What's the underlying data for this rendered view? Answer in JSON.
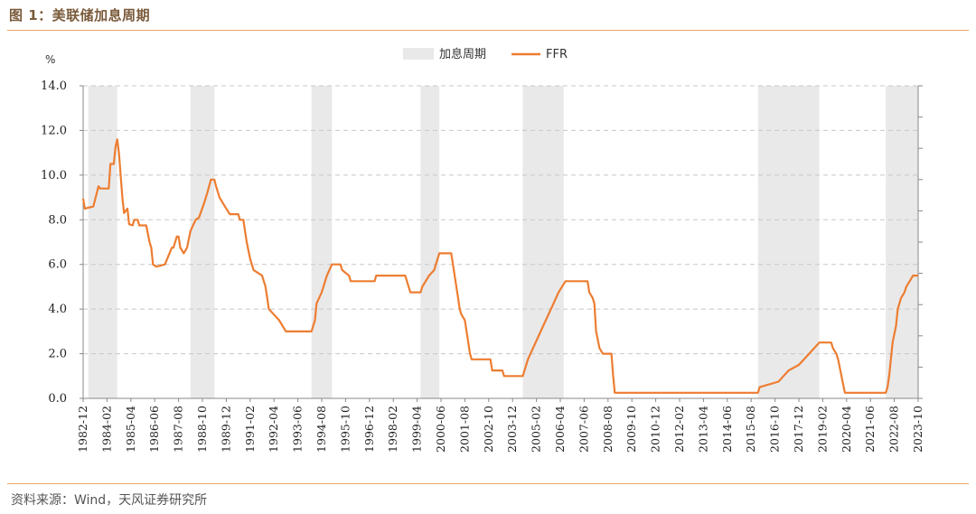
{
  "header": {
    "title": "图 1：美联储加息周期"
  },
  "footer": {
    "source": "资料来源：Wind，天风证券研究所"
  },
  "colors": {
    "accent": "#e8a466",
    "line": "#ed7d31",
    "shade": "#e9e9e9"
  },
  "chart_data": {
    "type": "line",
    "title": "",
    "ylabel": "%",
    "ylim": [
      0,
      14
    ],
    "yticks": [
      "0.0",
      "2.0",
      "4.0",
      "6.0",
      "8.0",
      "10.0",
      "12.0",
      "14.0"
    ],
    "grid": true,
    "legend_position": "top-center",
    "xticks": [
      "1982-12",
      "1984-02",
      "1985-04",
      "1986-06",
      "1987-08",
      "1988-10",
      "1989-12",
      "1991-02",
      "1992-04",
      "1993-06",
      "1994-08",
      "1995-10",
      "1996-12",
      "1998-02",
      "1999-04",
      "2000-06",
      "2001-08",
      "2002-10",
      "2003-12",
      "2005-02",
      "2006-04",
      "2007-06",
      "2008-08",
      "2009-10",
      "2010-12",
      "2012-02",
      "2013-04",
      "2014-06",
      "2015-08",
      "2016-10",
      "2017-12",
      "2019-02",
      "2020-04",
      "2021-06",
      "2022-08",
      "2023-10"
    ],
    "shaded_periods": {
      "name": "加息周期",
      "ranges": [
        [
          "1983-03",
          "1984-08"
        ],
        [
          "1988-03",
          "1989-05"
        ],
        [
          "1994-02",
          "1995-02"
        ],
        [
          "1999-06",
          "2000-05"
        ],
        [
          "2004-06",
          "2006-06"
        ],
        [
          "2015-12",
          "2018-12"
        ],
        [
          "2022-03",
          "2023-10"
        ]
      ]
    },
    "series": [
      {
        "name": "FFR",
        "points": [
          [
            "1982-12",
            8.95
          ],
          [
            "1983-01",
            8.5
          ],
          [
            "1983-06",
            8.6
          ],
          [
            "1983-09",
            9.5
          ],
          [
            "1983-10",
            9.4
          ],
          [
            "1984-03",
            9.4
          ],
          [
            "1984-04",
            10.5
          ],
          [
            "1984-06",
            10.5
          ],
          [
            "1984-07",
            11.25
          ],
          [
            "1984-08",
            11.6
          ],
          [
            "1984-09",
            11.0
          ],
          [
            "1984-10",
            10.0
          ],
          [
            "1984-11",
            9.0
          ],
          [
            "1984-12",
            8.3
          ],
          [
            "1985-02",
            8.5
          ],
          [
            "1985-03",
            7.8
          ],
          [
            "1985-05",
            7.75
          ],
          [
            "1985-06",
            8.0
          ],
          [
            "1985-08",
            8.0
          ],
          [
            "1985-09",
            7.75
          ],
          [
            "1986-01",
            7.75
          ],
          [
            "1986-03",
            7.0
          ],
          [
            "1986-04",
            6.75
          ],
          [
            "1986-05",
            6.0
          ],
          [
            "1986-07",
            5.9
          ],
          [
            "1986-12",
            6.0
          ],
          [
            "1987-04",
            6.75
          ],
          [
            "1987-05",
            6.75
          ],
          [
            "1987-07",
            7.25
          ],
          [
            "1987-08",
            7.25
          ],
          [
            "1987-09",
            6.75
          ],
          [
            "1987-11",
            6.5
          ],
          [
            "1988-01",
            6.75
          ],
          [
            "1988-03",
            7.5
          ],
          [
            "1988-06",
            8.0
          ],
          [
            "1988-08",
            8.1
          ],
          [
            "1988-11",
            8.75
          ],
          [
            "1989-01",
            9.25
          ],
          [
            "1989-03",
            9.8
          ],
          [
            "1989-05",
            9.8
          ],
          [
            "1989-06",
            9.5
          ],
          [
            "1989-08",
            9.0
          ],
          [
            "1989-10",
            8.75
          ],
          [
            "1989-12",
            8.5
          ],
          [
            "1990-02",
            8.25
          ],
          [
            "1990-07",
            8.25
          ],
          [
            "1990-08",
            8.0
          ],
          [
            "1990-10",
            8.0
          ],
          [
            "1990-11",
            7.5
          ],
          [
            "1990-12",
            7.0
          ],
          [
            "1991-02",
            6.25
          ],
          [
            "1991-04",
            5.75
          ],
          [
            "1991-09",
            5.5
          ],
          [
            "1991-11",
            5.0
          ],
          [
            "1991-12",
            4.5
          ],
          [
            "1992-01",
            4.0
          ],
          [
            "1992-07",
            3.5
          ],
          [
            "1992-09",
            3.25
          ],
          [
            "1992-11",
            3.0
          ],
          [
            "1994-02",
            3.0
          ],
          [
            "1994-03",
            3.25
          ],
          [
            "1994-04",
            3.5
          ],
          [
            "1994-05",
            4.25
          ],
          [
            "1994-08",
            4.75
          ],
          [
            "1994-11",
            5.5
          ],
          [
            "1995-02",
            6.0
          ],
          [
            "1995-07",
            6.0
          ],
          [
            "1995-08",
            5.75
          ],
          [
            "1995-12",
            5.5
          ],
          [
            "1996-01",
            5.25
          ],
          [
            "1997-03",
            5.25
          ],
          [
            "1997-04",
            5.5
          ],
          [
            "1998-09",
            5.5
          ],
          [
            "1998-10",
            5.25
          ],
          [
            "1998-11",
            5.0
          ],
          [
            "1998-12",
            4.75
          ],
          [
            "1999-06",
            4.75
          ],
          [
            "1999-07",
            5.0
          ],
          [
            "1999-09",
            5.25
          ],
          [
            "1999-11",
            5.5
          ],
          [
            "2000-02",
            5.75
          ],
          [
            "2000-03",
            6.0
          ],
          [
            "2000-05",
            6.5
          ],
          [
            "2000-12",
            6.5
          ],
          [
            "2001-01",
            6.0
          ],
          [
            "2001-02",
            5.5
          ],
          [
            "2001-03",
            5.0
          ],
          [
            "2001-04",
            4.5
          ],
          [
            "2001-05",
            4.0
          ],
          [
            "2001-06",
            3.75
          ],
          [
            "2001-08",
            3.5
          ],
          [
            "2001-09",
            3.0
          ],
          [
            "2001-10",
            2.5
          ],
          [
            "2001-11",
            2.0
          ],
          [
            "2001-12",
            1.75
          ],
          [
            "2002-11",
            1.75
          ],
          [
            "2002-12",
            1.25
          ],
          [
            "2003-06",
            1.25
          ],
          [
            "2003-07",
            1.0
          ],
          [
            "2004-06",
            1.0
          ],
          [
            "2004-07",
            1.25
          ],
          [
            "2004-09",
            1.75
          ],
          [
            "2004-12",
            2.25
          ],
          [
            "2005-03",
            2.75
          ],
          [
            "2005-06",
            3.25
          ],
          [
            "2005-09",
            3.75
          ],
          [
            "2005-12",
            4.25
          ],
          [
            "2006-03",
            4.75
          ],
          [
            "2006-07",
            5.25
          ],
          [
            "2007-08",
            5.25
          ],
          [
            "2007-09",
            4.75
          ],
          [
            "2007-11",
            4.5
          ],
          [
            "2007-12",
            4.25
          ],
          [
            "2008-01",
            3.0
          ],
          [
            "2008-03",
            2.25
          ],
          [
            "2008-05",
            2.0
          ],
          [
            "2008-10",
            2.0
          ],
          [
            "2008-11",
            1.0
          ],
          [
            "2008-12",
            0.25
          ],
          [
            "2015-12",
            0.25
          ],
          [
            "2016-01",
            0.5
          ],
          [
            "2016-12",
            0.75
          ],
          [
            "2017-03",
            1.0
          ],
          [
            "2017-06",
            1.25
          ],
          [
            "2017-12",
            1.5
          ],
          [
            "2018-03",
            1.75
          ],
          [
            "2018-06",
            2.0
          ],
          [
            "2018-09",
            2.25
          ],
          [
            "2018-12",
            2.5
          ],
          [
            "2019-07",
            2.5
          ],
          [
            "2019-08",
            2.25
          ],
          [
            "2019-10",
            2.0
          ],
          [
            "2019-11",
            1.75
          ],
          [
            "2020-03",
            0.25
          ],
          [
            "2022-03",
            0.25
          ],
          [
            "2022-04",
            0.5
          ],
          [
            "2022-05",
            1.0
          ],
          [
            "2022-06",
            1.75
          ],
          [
            "2022-07",
            2.5
          ],
          [
            "2022-09",
            3.25
          ],
          [
            "2022-10",
            4.0
          ],
          [
            "2022-12",
            4.5
          ],
          [
            "2023-02",
            4.75
          ],
          [
            "2023-03",
            5.0
          ],
          [
            "2023-05",
            5.25
          ],
          [
            "2023-07",
            5.5
          ],
          [
            "2023-10",
            5.5
          ]
        ]
      }
    ]
  }
}
